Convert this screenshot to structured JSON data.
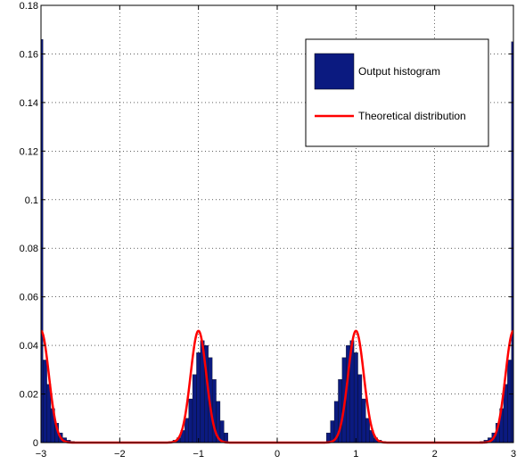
{
  "chart_data": {
    "type": "bar",
    "title": "",
    "xlabel": "",
    "ylabel": "",
    "xlim": [
      -3,
      3
    ],
    "ylim": [
      0,
      0.18
    ],
    "grid": true,
    "grid_style": "dotted",
    "legend_placement": "top-right",
    "x_ticks": [
      "−3",
      "−2",
      "−1",
      "0",
      "1",
      "2",
      "3"
    ],
    "y_ticks": [
      "0",
      "0.02",
      "0.04",
      "0.06",
      "0.08",
      "0.1",
      "0.12",
      "0.14",
      "0.16",
      "0.18"
    ],
    "series": [
      {
        "name": "Output histogram",
        "kind": "bar",
        "color": "#0b1a80",
        "x": [
          -2.95,
          -2.9,
          -2.85,
          -2.8,
          -2.75,
          -2.7,
          -2.65,
          -2.6,
          -1.35,
          -1.3,
          -1.25,
          -1.2,
          -1.15,
          -1.1,
          -1.05,
          -1.0,
          -0.95,
          -0.9,
          -0.85,
          -0.8,
          -0.75,
          -0.7,
          -0.65,
          0.65,
          0.7,
          0.75,
          0.8,
          0.85,
          0.9,
          0.95,
          1.0,
          1.05,
          1.1,
          1.15,
          1.2,
          1.25,
          1.3,
          1.35,
          2.6,
          2.65,
          2.7,
          2.75,
          2.8,
          2.85,
          2.9,
          2.95
        ],
        "values": [
          0.034,
          0.024,
          0.014,
          0.008,
          0.004,
          0.002,
          0.001,
          0.0005,
          0.0005,
          0.001,
          0.002,
          0.005,
          0.01,
          0.018,
          0.028,
          0.037,
          0.042,
          0.04,
          0.035,
          0.026,
          0.017,
          0.009,
          0.004,
          0.004,
          0.009,
          0.017,
          0.026,
          0.035,
          0.04,
          0.042,
          0.037,
          0.028,
          0.018,
          0.01,
          0.005,
          0.002,
          0.001,
          0.0005,
          0.0005,
          0.001,
          0.002,
          0.004,
          0.008,
          0.014,
          0.024,
          0.034
        ]
      },
      {
        "name": "Output histogram",
        "kind": "edge-bar",
        "color": "#0b1a80",
        "x": [
          -3,
          3
        ],
        "values": [
          0.166,
          0.165
        ]
      },
      {
        "name": "Theoretical distribution",
        "kind": "line",
        "color": "#ff0000",
        "mixture_of_gaussians": {
          "means": [
            -3,
            -1,
            1,
            3
          ],
          "peak": 0.046,
          "sigma": 0.1
        }
      }
    ]
  },
  "legend": {
    "items": [
      {
        "label": "Output histogram",
        "color": "#0b1a80",
        "kind": "patch"
      },
      {
        "label": "Theoretical distribution",
        "color": "#ff0000",
        "kind": "line"
      }
    ]
  }
}
